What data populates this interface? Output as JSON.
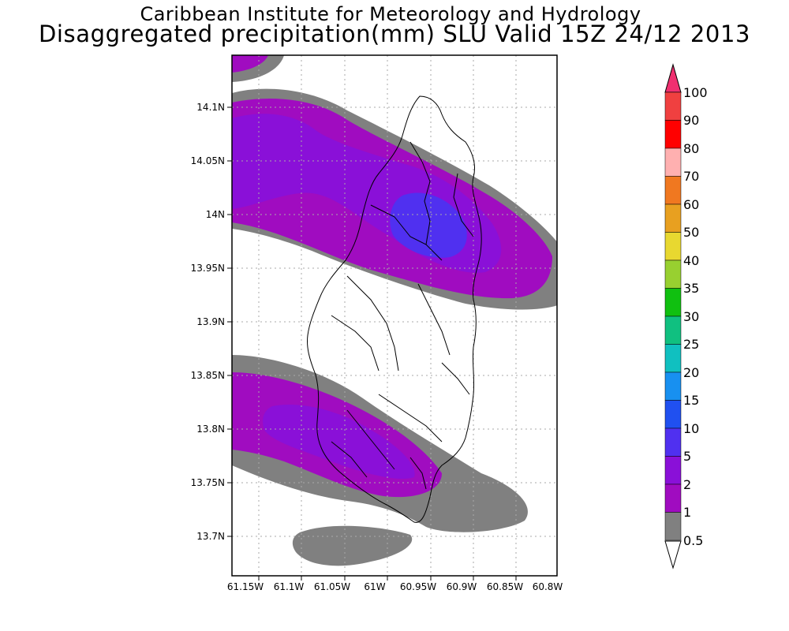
{
  "title": {
    "line1": "Caribbean Institute for Meteorology and Hydrology",
    "line2": "Disaggregated precipitation(mm) SLU Valid 15Z 24/12 2013"
  },
  "axes": {
    "lon_ticks": [
      "61.15W",
      "61.1W",
      "61.05W",
      "61W",
      "60.95W",
      "60.9W",
      "60.85W",
      "60.8W"
    ],
    "lat_ticks": [
      "14.1N",
      "14.05N",
      "14N",
      "13.95N",
      "13.9N",
      "13.85N",
      "13.8N",
      "13.75N",
      "13.7N"
    ]
  },
  "colorbar": {
    "labels": [
      "100",
      "90",
      "80",
      "70",
      "60",
      "50",
      "40",
      "35",
      "30",
      "25",
      "20",
      "15",
      "10",
      "5",
      "2",
      "1",
      "0.5"
    ],
    "colors": [
      "#f03070",
      "#f04040",
      "#ff0000",
      "#ffb0b0",
      "#f07820",
      "#e8a020",
      "#e8d830",
      "#98d030",
      "#10c010",
      "#10c080",
      "#10c0c0",
      "#1890f0",
      "#2050f0",
      "#5030f0",
      "#8a10d8",
      "#a00cc0",
      "#808080"
    ]
  }
}
